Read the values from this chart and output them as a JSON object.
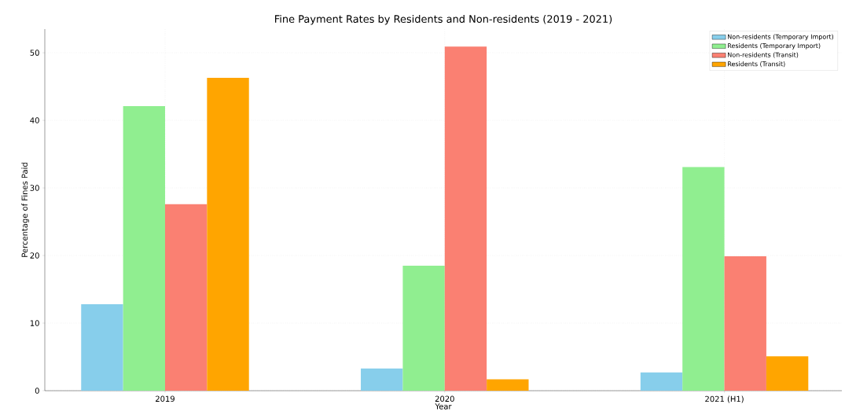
{
  "chart_data": {
    "type": "bar",
    "title": "Fine Payment Rates by Residents and Non-residents (2019 - 2021)",
    "xlabel": "Year",
    "ylabel": "Percentage of Fines Paid",
    "categories": [
      "2019",
      "2020",
      "2021 (H1)"
    ],
    "series": [
      {
        "name": "Non-residents (Temporary Import)",
        "color": "#87ceeb",
        "values": [
          12.8,
          3.3,
          2.7
        ]
      },
      {
        "name": "Residents (Temporary Import)",
        "color": "#90ee90",
        "values": [
          42.1,
          18.5,
          33.1
        ]
      },
      {
        "name": "Non-residents (Transit)",
        "color": "#fa8072",
        "values": [
          27.6,
          50.9,
          19.9
        ]
      },
      {
        "name": "Residents (Transit)",
        "color": "#ffa500",
        "values": [
          46.3,
          1.7,
          5.1
        ]
      }
    ],
    "ylim": [
      0,
      53.5
    ],
    "yticks": [
      0,
      10,
      20,
      30,
      40,
      50
    ],
    "grid": true,
    "legend": "top right"
  }
}
